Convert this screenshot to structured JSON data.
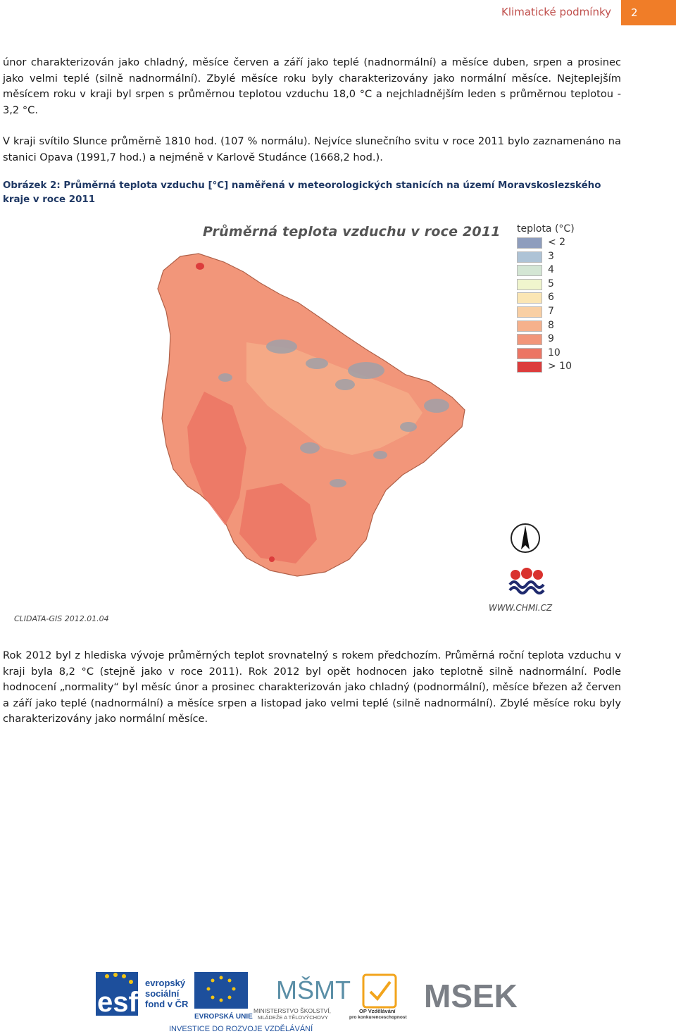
{
  "header": {
    "title": "Klimatické podmínky",
    "page_number": "2"
  },
  "paragraphs": [
    "únor charakterizován jako chladný, měsíce červen a září jako teplé (nadnormální) a měsíce duben, srpen a prosinec jako velmi teplé (silně nadnormální). Zbylé měsíce roku byly charakterizovány jako normální měsíce. Nejteplejším měsícem roku v kraji byl srpen s průměrnou teplotou vzduchu 18,0 °C a nejchladnějším leden s průměrnou teplotou - 3,2 °C.",
    "V kraji svítilo Slunce průměrně 1810 hod. (107 % normálu). Nejvíce slunečního svitu v roce 2011 bylo zaznamenáno na stanici Opava (1991,7 hod.) a nejméně v Karlově Studánce (1668,2 hod.).",
    "Rok 2012 byl z hlediska vývoje průměrných teplot srovnatelný s rokem předchozím. Průměrná roční teplota vzduchu v kraji byla 8,2 °C (stejně jako v roce 2011). Rok 2012 byl opět hodnocen jako teplotně silně nadnormální. Podle hodnocení „normality“ byl měsíc únor a prosinec charakterizován jako chladný (podnormální), měsíce březen až červen a září jako teplé (nadnormální) a měsíce srpen a listopad jako velmi teplé (silně nadnormální). Zbylé měsíce roku byly charakterizovány jako normální měsíce."
  ],
  "figure": {
    "caption": "Obrázek 2: Průměrná teplota vzduchu [°C] naměřená v meteorologických stanicích na území Moravskoslezského kraje v roce 2011",
    "map_title": "Průměrná teplota vzduchu v roce 2011",
    "legend_title": "teplota (°C)",
    "legend": [
      {
        "label": "< 2",
        "color": "#8e9dbd"
      },
      {
        "label": "3",
        "color": "#aec3d6"
      },
      {
        "label": "4",
        "color": "#d4e6d4"
      },
      {
        "label": "5",
        "color": "#f0f5cd"
      },
      {
        "label": "6",
        "color": "#fbe6b4"
      },
      {
        "label": "7",
        "color": "#f9cfa3"
      },
      {
        "label": "8",
        "color": "#f6b18c"
      },
      {
        "label": "9",
        "color": "#f2967a"
      },
      {
        "label": "10",
        "color": "#ec7564"
      },
      {
        "label": "> 10",
        "color": "#dc3c3c"
      }
    ],
    "source_left": "CLIDATA-GIS 2012.01.04",
    "source_right": "WWW.CHMI.CZ",
    "colors": {
      "region_light": "#f2967a",
      "region_dark": "#ec7564",
      "mountains": "#a0a0a8",
      "hot_spot": "#dc3c3c"
    }
  },
  "footer": {
    "esf_text": [
      "evropský",
      "sociální",
      "fond v ČR"
    ],
    "eu_text": "EVROPSKÁ UNIE",
    "msmt_text": [
      "MINISTERSTVO ŠKOLSTVÍ,",
      "MLÁDEŽE A TĚLOVÝCHOVY"
    ],
    "op_text": [
      "OP Vzdělávání",
      "pro konkurenceschopnost"
    ],
    "msek_text": "MSEK",
    "slogan": "INVESTICE DO ROZVOJE VZDĚLÁVÁNÍ"
  }
}
